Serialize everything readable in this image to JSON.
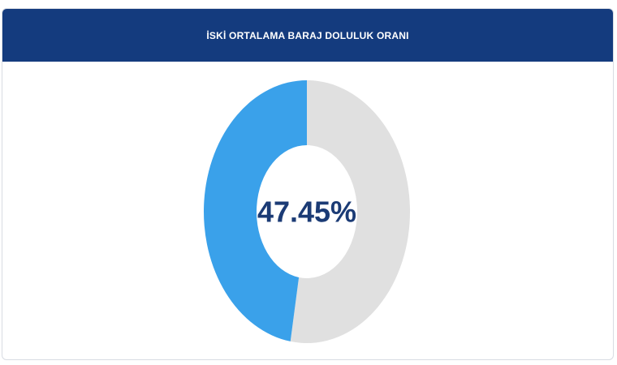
{
  "chart_data": {
    "type": "donut",
    "title": "İSKİ ORTALAMA BARAJ DOLULUK ORANI",
    "categories": [
      null,
      null
    ],
    "values": [
      47.45,
      52.55
    ],
    "value_labels": [
      "47.45%",
      null
    ],
    "colors": [
      "#3aa1ea",
      "#e0e0e0"
    ]
  }
}
